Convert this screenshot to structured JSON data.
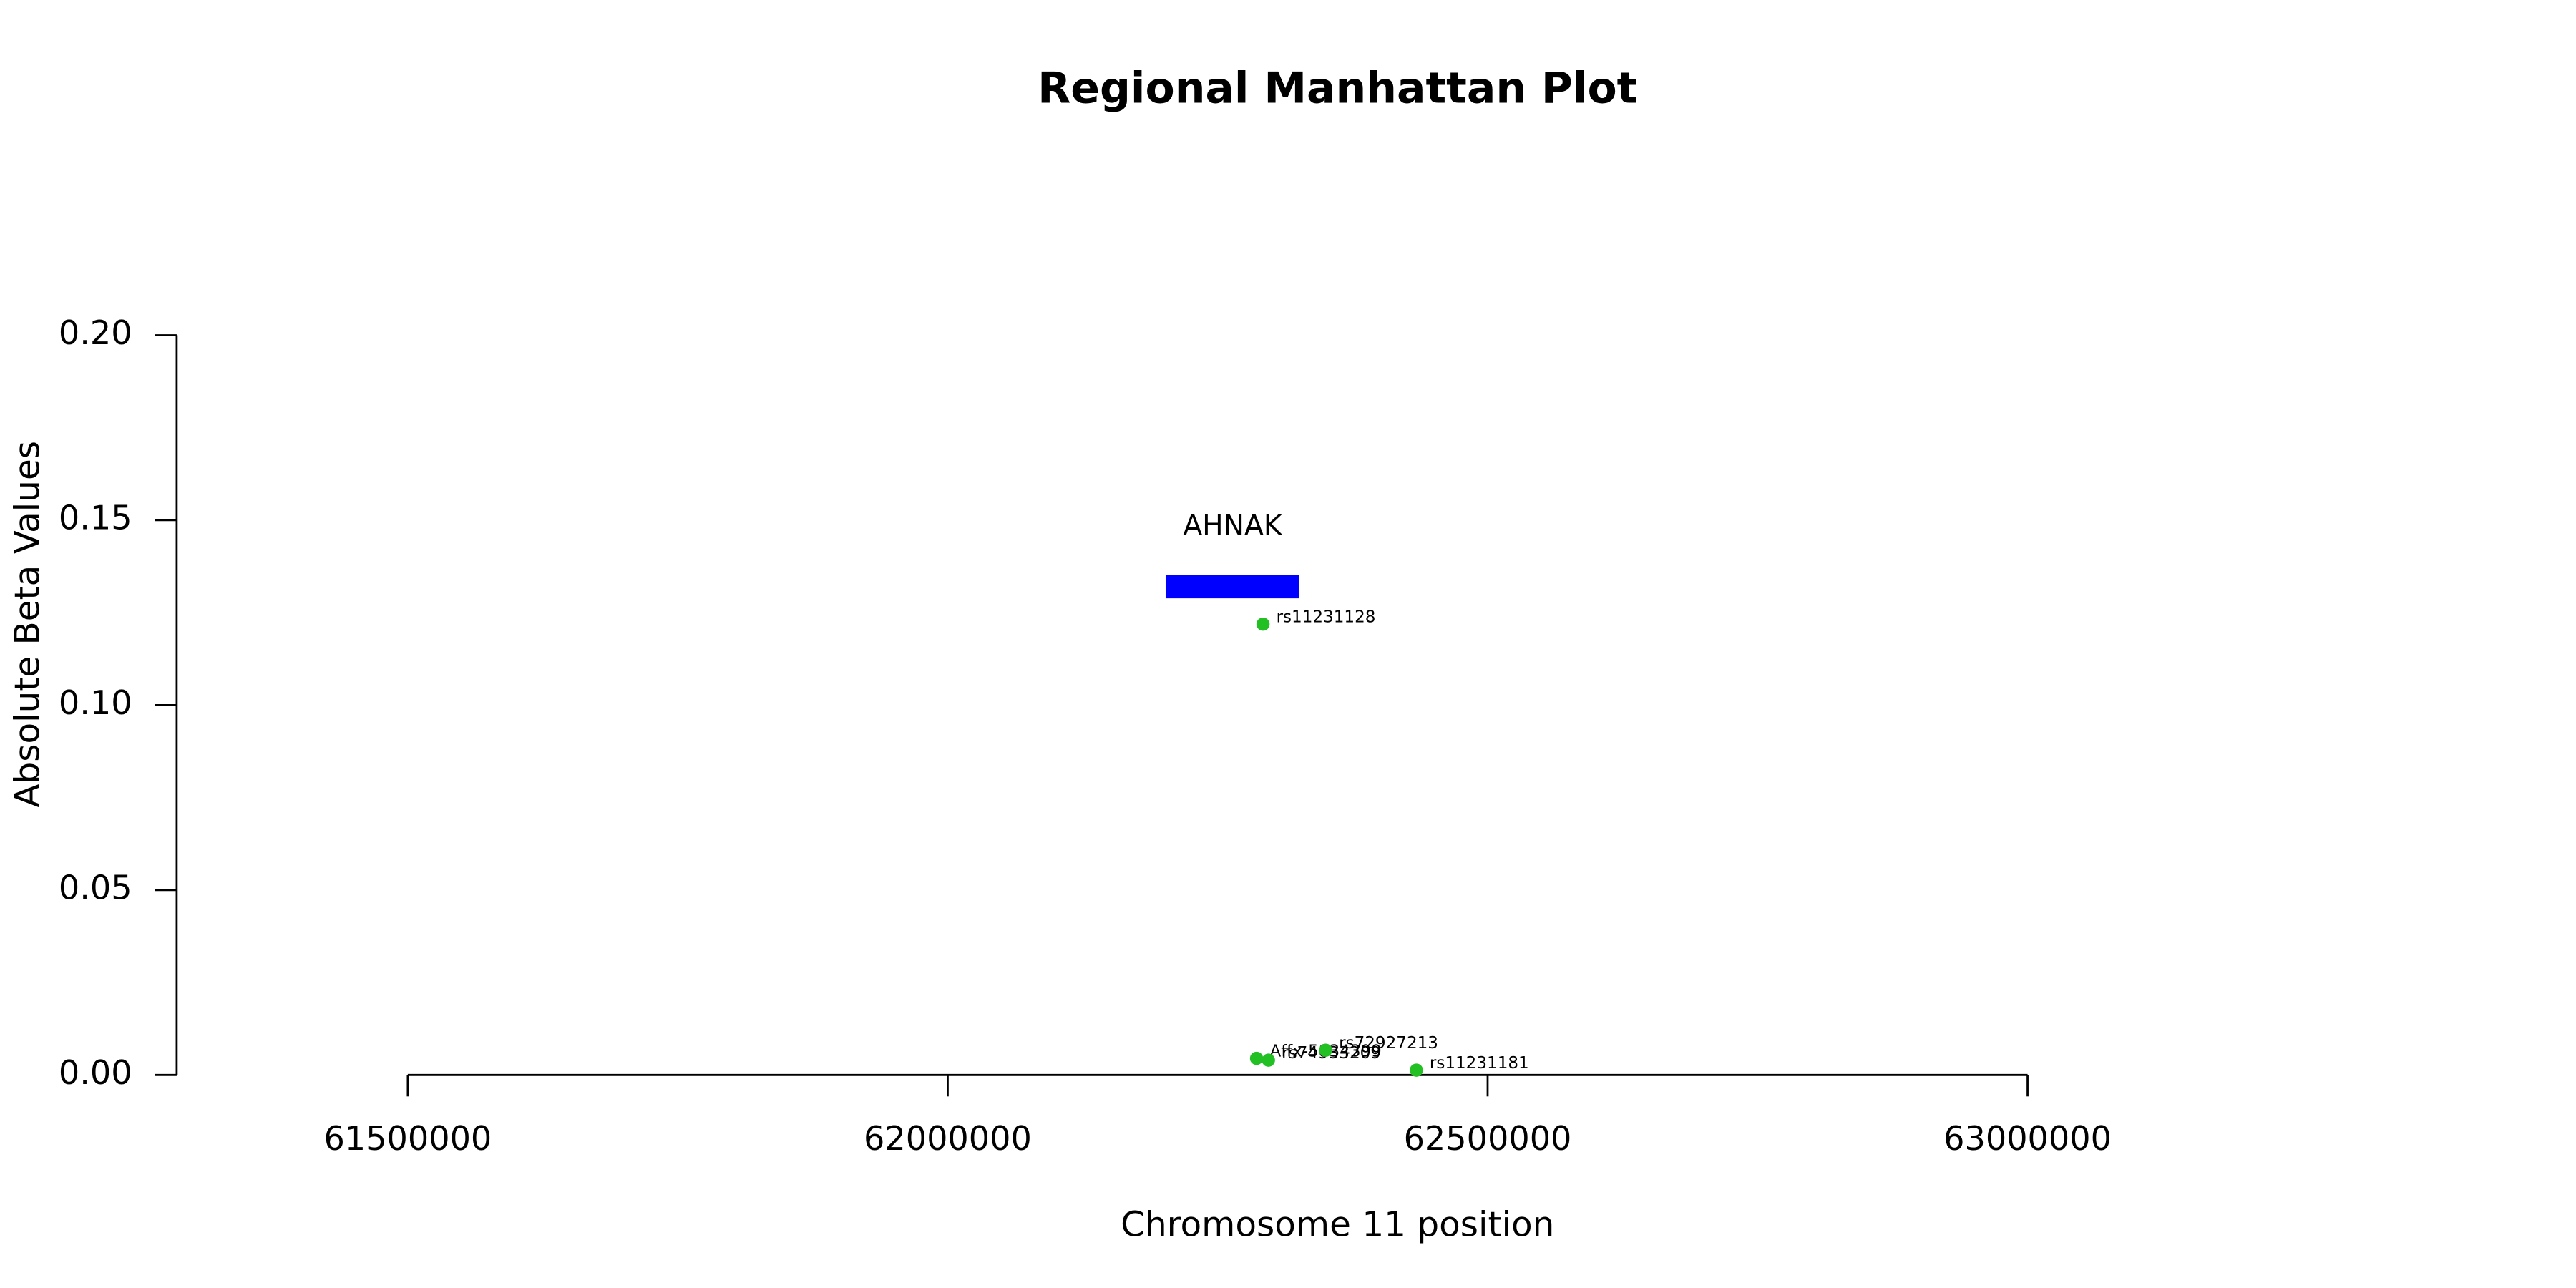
{
  "chart_data": {
    "type": "scatter",
    "title": "Regional Manhattan Plot",
    "x_label": "Chromosome 11 position",
    "y_label": "Absolute Beta Values",
    "series": [
      {
        "color": "#22c022",
        "x": [
          62292000,
          62286000,
          62297000,
          62350000,
          62434000
        ],
        "values": [
          0.1219,
          0.0045,
          0.004,
          0.0067,
          0.0013
        ],
        "point_labels": [
          "rs11231128",
          "Affx-5834399",
          "rs74933209",
          "rs72927213",
          "rs11231181"
        ]
      }
    ],
    "genes": [
      {
        "name": "AHNAK",
        "start": 62201800,
        "end": 62325700,
        "y": 0.132,
        "color": "#0000ff"
      }
    ],
    "xlim": [
      61286000,
      63436000
    ],
    "ylim": [
      0,
      0.2
    ],
    "xticks": [
      61500000,
      62000000,
      62500000,
      63000000
    ],
    "yticks": [
      {
        "value": 0,
        "label": "0.00"
      },
      {
        "value": 0.05,
        "label": "0.05"
      },
      {
        "value": 0.1,
        "label": "0.10"
      },
      {
        "value": 0.15,
        "label": "0.15"
      },
      {
        "value": 0.2,
        "label": "0.20"
      }
    ]
  }
}
